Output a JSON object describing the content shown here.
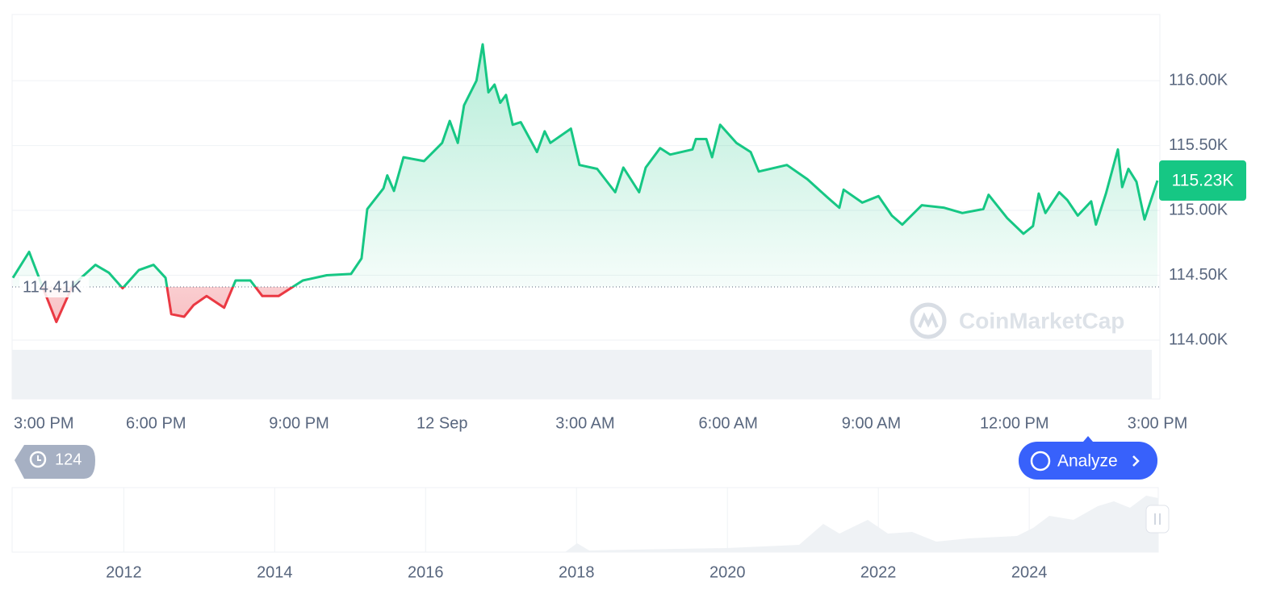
{
  "chart_data": {
    "type": "line",
    "x": [
      0,
      0.34,
      0.58,
      0.91,
      1.25,
      1.73,
      2.01,
      2.3,
      2.64,
      2.95,
      3.2,
      3.32,
      3.59,
      3.79,
      4.06,
      4.43,
      4.67,
      4.98,
      5.23,
      5.57,
      6.08,
      6.58,
      7.09,
      7.31,
      7.43,
      7.77,
      7.85,
      7.99,
      8.19,
      8.62,
      9.0,
      9.16,
      9.33,
      9.46,
      9.72,
      9.85,
      9.97,
      10.1,
      10.22,
      10.34,
      10.48,
      10.65,
      10.99,
      11.15,
      11.27,
      11.7,
      11.88,
      12.25,
      12.63,
      12.8,
      13.13,
      13.27,
      13.57,
      13.78,
      14.25,
      14.32,
      14.54,
      14.66,
      14.83,
      15.17,
      15.47,
      15.64,
      16.23,
      16.66,
      17.08,
      17.33,
      17.42,
      17.81,
      18.15,
      18.43,
      18.65,
      19.06,
      19.53,
      19.91,
      20.35,
      20.46,
      20.85,
      21.19,
      21.39,
      21.51,
      21.65,
      21.94,
      22.11,
      22.33,
      22.61,
      22.71,
      22.92,
      23.17,
      23.26,
      23.39,
      23.56,
      23.73,
      24
    ],
    "values": [
      114480,
      114680,
      114450,
      114140,
      114420,
      114580,
      114520,
      114400,
      114540,
      114580,
      114480,
      114200,
      114180,
      114270,
      114340,
      114250,
      114460,
      114460,
      114340,
      114340,
      114460,
      114500,
      114510,
      114630,
      115010,
      115170,
      115270,
      115150,
      115410,
      115380,
      115520,
      115690,
      115520,
      115810,
      116000,
      116280,
      115910,
      115970,
      115830,
      115890,
      115660,
      115680,
      115450,
      115610,
      115520,
      115630,
      115350,
      115320,
      115140,
      115330,
      115140,
      115330,
      115480,
      115430,
      115470,
      115550,
      115550,
      115410,
      115660,
      115520,
      115450,
      115300,
      115350,
      115240,
      115100,
      115020,
      115160,
      115060,
      115110,
      114960,
      114890,
      115040,
      115020,
      114980,
      115010,
      115120,
      114940,
      114820,
      114880,
      115130,
      114980,
      115140,
      115080,
      114960,
      115070,
      114890,
      115130,
      115470,
      115180,
      115320,
      115220,
      114930,
      115230
    ],
    "xlim": [
      0,
      24
    ],
    "xticks": [
      {
        "value": 0,
        "label": "3:00 PM"
      },
      {
        "value": 3,
        "label": "6:00 PM"
      },
      {
        "value": 6,
        "label": "9:00 PM"
      },
      {
        "value": 9,
        "label": "12 Sep"
      },
      {
        "value": 12,
        "label": "3:00 AM"
      },
      {
        "value": 15,
        "label": "6:00 AM"
      },
      {
        "value": 18,
        "label": "9:00 AM"
      },
      {
        "value": 21,
        "label": "12:00 PM"
      },
      {
        "value": 24,
        "label": "3:00 PM"
      }
    ],
    "ylim": [
      114000,
      116510
    ],
    "yticks": [
      {
        "value": 114000,
        "label": "114.00K"
      },
      {
        "value": 114500,
        "label": "114.50K"
      },
      {
        "value": 115000,
        "label": "115.00K"
      },
      {
        "value": 115500,
        "label": "115.50K"
      },
      {
        "value": 116000,
        "label": "116.00K"
      }
    ],
    "grid": true,
    "color_up": "#16c784",
    "color_down": "#ea3943",
    "reference": {
      "value": 114410,
      "label": "114.41K"
    },
    "current": {
      "value": 115230,
      "label": "115.23K"
    },
    "watermark": "CoinMarketCap",
    "history_count": 124,
    "analyze_button": "Analyze",
    "navigator": {
      "xlim": [
        2010.52,
        2025.71
      ],
      "xticks": [
        2012,
        2014,
        2016,
        2018,
        2020,
        2022,
        2024
      ]
    }
  }
}
